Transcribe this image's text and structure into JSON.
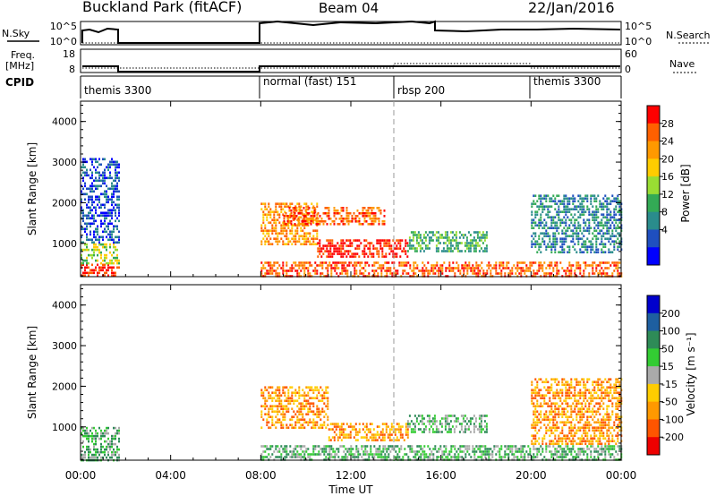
{
  "header": {
    "station": "Buckland Park (fitACF)",
    "beam": "Beam 04",
    "date": "22/Jan/2016"
  },
  "nsky_panel": {
    "left_label": "N.Sky",
    "left_ticks": [
      "10^5",
      "10^0"
    ],
    "right_ticks": [
      "10^5",
      "10^0"
    ],
    "right_label": "N.Search"
  },
  "freq_panel": {
    "left_label_1": "Freq.",
    "left_label_2": "[MHz]",
    "left_ticks": [
      "18",
      "8"
    ],
    "right_ticks": [
      "60",
      "0"
    ],
    "right_label": "Nave"
  },
  "cpid": {
    "label": "CPID",
    "modes": [
      {
        "name": "themis 3300",
        "start_hour": 0
      },
      {
        "name": "normal (fast) 151",
        "start_hour": 8
      },
      {
        "name": "rbsp 200",
        "start_hour": 14
      },
      {
        "name": "themis 3300",
        "start_hour": 20
      }
    ]
  },
  "chart_data": [
    {
      "type": "heatmap",
      "name": "power",
      "ylabel": "Slant Range [km]",
      "yticks": [
        1000,
        2000,
        3000,
        4000
      ],
      "ylim": [
        180,
        4500
      ],
      "xlim_hours": [
        0,
        24
      ],
      "colorbar": {
        "label": "Power [dB]",
        "ticks": [
          "28",
          "24",
          "20",
          "16",
          "12",
          "8",
          "4"
        ],
        "colors": [
          "#ff0000",
          "#ff6000",
          "#ff9900",
          "#ffcc00",
          "#99dd33",
          "#33aa55",
          "#2a8c8c",
          "#1f4fbf",
          "#0000ff"
        ]
      },
      "data_blocks": [
        {
          "t": [
            0.0,
            1.7
          ],
          "r": [
            180,
            500
          ],
          "level": 28
        },
        {
          "t": [
            0.0,
            1.7
          ],
          "r": [
            500,
            1000
          ],
          "level": 16
        },
        {
          "t": [
            0.0,
            1.7
          ],
          "r": [
            1000,
            3100
          ],
          "level": 6
        },
        {
          "t": [
            8.0,
            10.5
          ],
          "r": [
            1000,
            2000
          ],
          "level": 22
        },
        {
          "t": [
            9.0,
            13.5
          ],
          "r": [
            1500,
            1900
          ],
          "level": 24
        },
        {
          "t": [
            10.5,
            14.5
          ],
          "r": [
            700,
            1100
          ],
          "level": 28
        },
        {
          "t": [
            14.5,
            18.0
          ],
          "r": [
            800,
            1300
          ],
          "level": 14
        },
        {
          "t": [
            8.0,
            24.0
          ],
          "r": [
            180,
            550
          ],
          "level": 26
        },
        {
          "t": [
            20.0,
            24.0
          ],
          "r": [
            800,
            2200
          ],
          "level": 10
        }
      ]
    },
    {
      "type": "heatmap",
      "name": "velocity",
      "ylabel": "Slant Range [km]",
      "yticks": [
        1000,
        2000,
        3000,
        4000
      ],
      "ylim": [
        180,
        4500
      ],
      "xlim_hours": [
        0,
        24
      ],
      "xticks": [
        "00:00",
        "04:00",
        "08:00",
        "12:00",
        "16:00",
        "20:00",
        "00:00"
      ],
      "xlabel": "Time UT",
      "colorbar": {
        "label": "Velocity [m s⁻¹]",
        "ticks": [
          "200",
          "100",
          "50",
          "15",
          "-15",
          "-50",
          "-100",
          "-200"
        ],
        "colors": [
          "#0000cc",
          "#1e5fa0",
          "#2e8b57",
          "#33cc33",
          "#aaaaaa",
          "#ffcc00",
          "#ff9900",
          "#ff5500",
          "#ee0000"
        ]
      },
      "data_blocks": [
        {
          "t": [
            0.0,
            1.7
          ],
          "r": [
            180,
            1000
          ],
          "v": 0
        },
        {
          "t": [
            8.0,
            11.0
          ],
          "r": [
            1000,
            2000
          ],
          "v": -60
        },
        {
          "t": [
            11.0,
            14.5
          ],
          "r": [
            700,
            1100
          ],
          "v": -80
        },
        {
          "t": [
            14.5,
            18.0
          ],
          "r": [
            900,
            1300
          ],
          "v": 0
        },
        {
          "t": [
            8.0,
            24.0
          ],
          "r": [
            180,
            550
          ],
          "v": 20
        },
        {
          "t": [
            20.0,
            24.0
          ],
          "r": [
            600,
            2200
          ],
          "v": -30
        }
      ]
    }
  ]
}
